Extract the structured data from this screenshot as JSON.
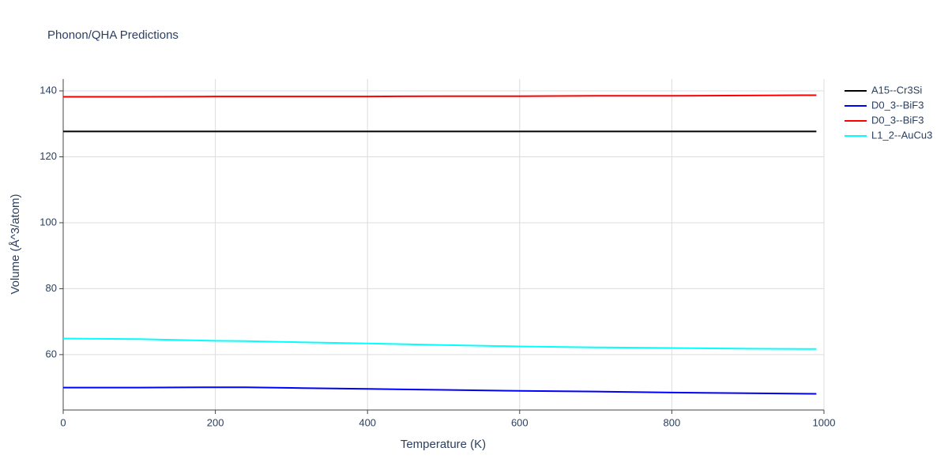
{
  "chart_data": {
    "type": "line",
    "title": "Phonon/QHA Predictions",
    "x_label": "Temperature (K)",
    "y_label": "Volume (Å^3/atom)",
    "x": [
      0,
      100,
      200,
      240,
      300,
      400,
      500,
      600,
      700,
      800,
      900,
      990
    ],
    "series": [
      {
        "name": "A15--Cr3Si",
        "color": "#000000",
        "values": [
          127.7,
          127.7,
          127.7,
          127.7,
          127.7,
          127.7,
          127.7,
          127.7,
          127.7,
          127.7,
          127.7,
          127.7
        ]
      },
      {
        "name": "D0_3--BiF3",
        "color": "#0000ff",
        "values": [
          50.0,
          50.0,
          50.1,
          50.1,
          49.9,
          49.6,
          49.3,
          49.0,
          48.8,
          48.5,
          48.3,
          48.1
        ]
      },
      {
        "name": "D0_3--BiF3",
        "color": "#ff0000",
        "values": [
          138.2,
          138.2,
          138.3,
          138.3,
          138.3,
          138.3,
          138.4,
          138.4,
          138.5,
          138.5,
          138.6,
          138.7
        ]
      },
      {
        "name": "L1_2--AuCu3",
        "color": "#00ffff",
        "values": [
          64.9,
          64.7,
          64.2,
          64.1,
          63.8,
          63.4,
          62.9,
          62.5,
          62.2,
          62.0,
          61.8,
          61.7
        ]
      }
    ],
    "xlim": [
      0,
      1000
    ],
    "xticks": [
      0,
      200,
      400,
      600,
      800,
      1000
    ],
    "ylim": [
      43.2,
      143.6
    ],
    "yticks": [
      60,
      80,
      100,
      120,
      140
    ],
    "grid": true,
    "legend": "right"
  }
}
